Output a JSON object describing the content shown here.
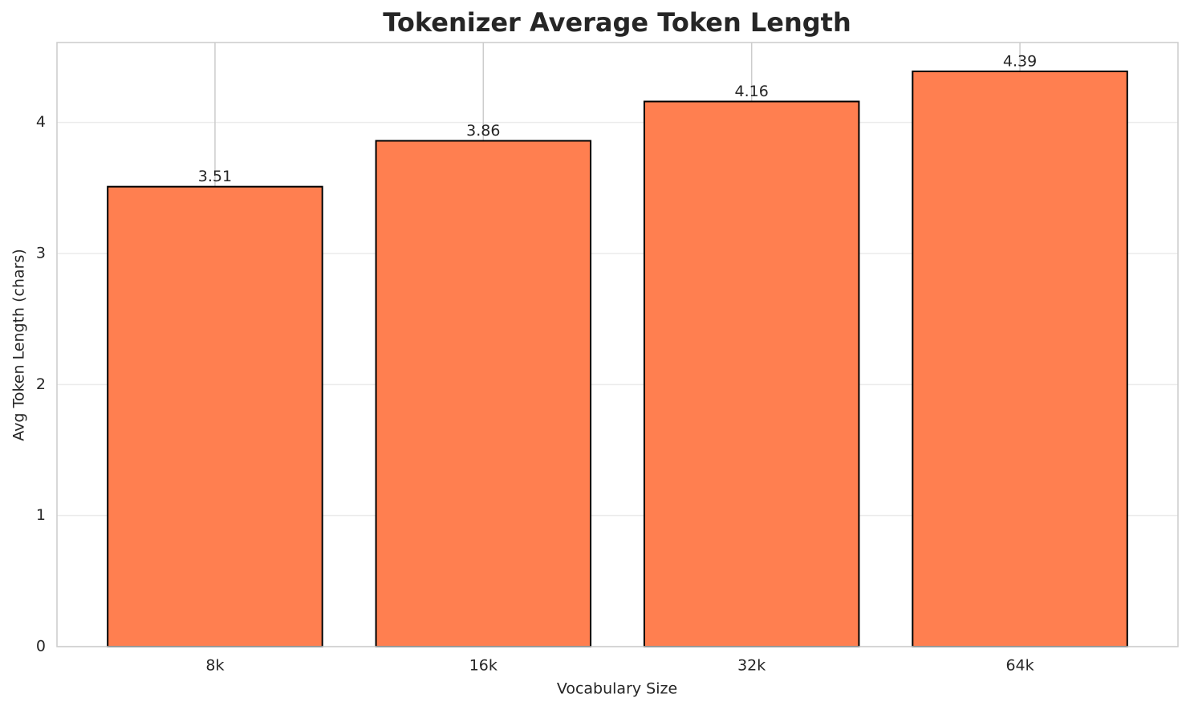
{
  "chart_data": {
    "type": "bar",
    "title": "Tokenizer Average Token Length",
    "x_label": "Vocabulary Size",
    "y_label": "Avg Token Length (chars)",
    "categories": [
      "8k",
      "16k",
      "32k",
      "64k"
    ],
    "values": [
      3.51,
      3.86,
      4.16,
      4.39
    ],
    "color": "#ff7f50",
    "ylim": [
      0,
      4.61
    ],
    "yticks": [
      0,
      1,
      2,
      3,
      4
    ],
    "grid": true
  }
}
